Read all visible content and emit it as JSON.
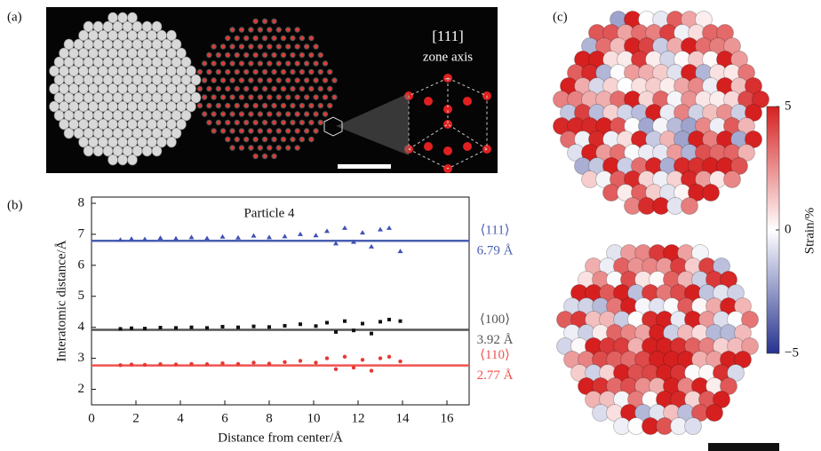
{
  "labels": {
    "panel_a": "(a)",
    "panel_b": "(b)",
    "panel_c": "(c)",
    "zone_axis_index": "[111]",
    "zone_axis": "zone axis"
  },
  "chart_data": [
    {
      "type": "scatter",
      "annotation": "Particle 4",
      "x_label": "Distance from center/Å",
      "y_label": "Interatomic distance/Å",
      "xlim": [
        0,
        17
      ],
      "ylim": [
        1.5,
        8.2
      ],
      "xticks": [
        0,
        2,
        4,
        6,
        8,
        10,
        12,
        14,
        16
      ],
      "yticks": [
        2,
        3,
        4,
        5,
        6,
        7,
        8
      ],
      "series": [
        {
          "color": "#3f51b5",
          "marker": "triangle",
          "x": [
            1.3,
            1.8,
            2.4,
            3.1,
            3.8,
            4.5,
            5.2,
            5.9,
            6.6,
            7.3,
            8.0,
            8.7,
            9.4,
            10.1,
            10.6,
            11.0,
            11.4,
            11.8,
            12.2,
            12.6,
            13.0,
            13.4,
            13.9
          ],
          "values": [
            6.82,
            6.85,
            6.84,
            6.88,
            6.86,
            6.9,
            6.87,
            6.92,
            6.89,
            6.95,
            6.9,
            6.93,
            7.0,
            6.96,
            7.1,
            6.7,
            7.2,
            6.75,
            7.05,
            6.6,
            7.15,
            7.2,
            6.45
          ]
        },
        {
          "color": "#111111",
          "marker": "square",
          "x": [
            1.3,
            1.8,
            2.4,
            3.1,
            3.8,
            4.5,
            5.2,
            5.9,
            6.6,
            7.3,
            8.0,
            8.7,
            9.4,
            10.1,
            10.6,
            11.0,
            11.4,
            11.8,
            12.2,
            12.6,
            13.0,
            13.4,
            13.9
          ],
          "values": [
            3.95,
            3.97,
            3.96,
            3.99,
            3.98,
            4.0,
            3.98,
            4.02,
            4.0,
            4.03,
            4.01,
            4.05,
            4.1,
            4.04,
            4.15,
            3.85,
            4.2,
            3.9,
            4.12,
            3.8,
            4.18,
            4.25,
            4.2
          ]
        },
        {
          "color": "#e53935",
          "marker": "circle",
          "x": [
            1.3,
            1.8,
            2.4,
            3.1,
            3.8,
            4.5,
            5.2,
            5.9,
            6.6,
            7.3,
            8.0,
            8.7,
            9.4,
            10.1,
            10.6,
            11.0,
            11.4,
            11.8,
            12.2,
            12.6,
            13.0,
            13.4,
            13.9
          ],
          "values": [
            2.78,
            2.8,
            2.79,
            2.81,
            2.8,
            2.82,
            2.81,
            2.84,
            2.82,
            2.86,
            2.83,
            2.88,
            2.92,
            2.86,
            3.0,
            2.65,
            3.05,
            2.7,
            2.95,
            2.6,
            3.0,
            3.05,
            2.9
          ]
        }
      ],
      "reference_lines": [
        {
          "name": "⟨111⟩",
          "value": 6.79,
          "value_label": "6.79 Å",
          "color": "#4a5fb0"
        },
        {
          "name": "⟨100⟩",
          "value": 3.92,
          "value_label": "3.92 Å",
          "color": "#555555"
        },
        {
          "name": "⟨110⟩",
          "value": 2.77,
          "value_label": "2.77 Å",
          "color": "#ef5350"
        }
      ]
    },
    {
      "type": "colorbar",
      "label": "Strain/%",
      "ylim": [
        -5,
        5
      ],
      "yticks": [
        {
          "value": 5,
          "label": "5"
        },
        0,
        {
          "value": -5,
          "label": "−5"
        }
      ],
      "colors": [
        "#27338f",
        "#ffffff",
        "#d62020"
      ]
    }
  ]
}
